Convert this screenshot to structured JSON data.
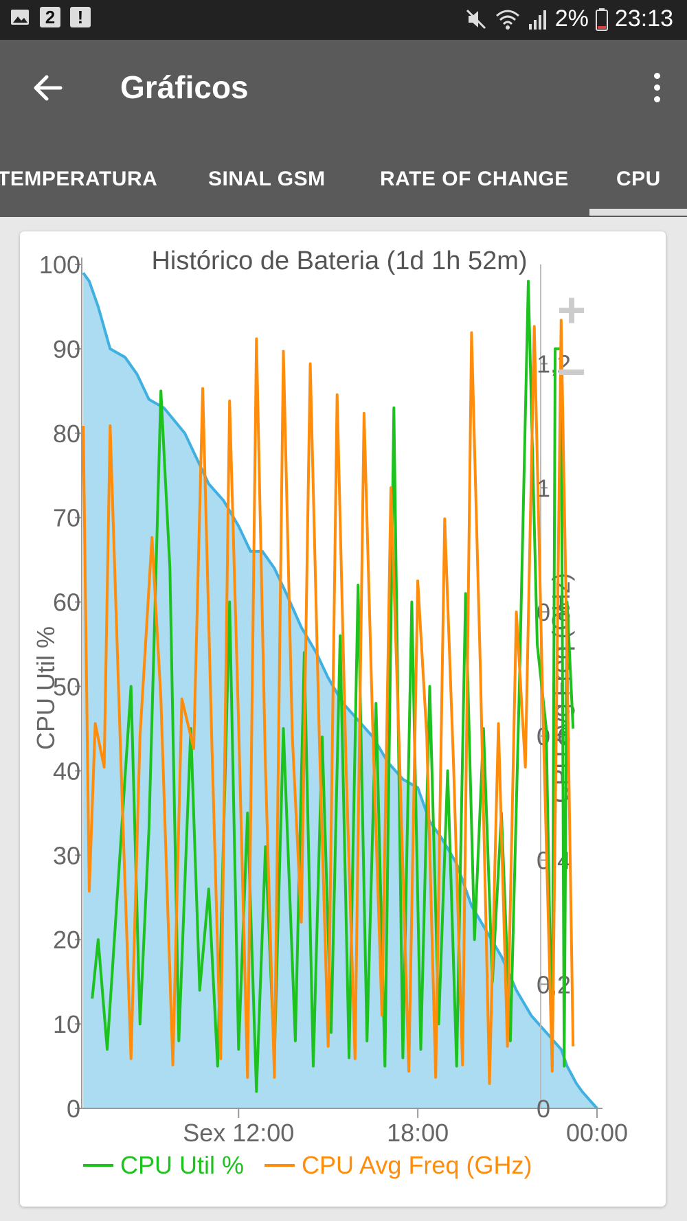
{
  "status_bar": {
    "notification_count": "2",
    "battery_percent": "2%",
    "time": "23:13",
    "icons": [
      "image-icon",
      "exclamation-icon",
      "mute-icon",
      "wifi-icon",
      "signal-icon",
      "battery-icon"
    ]
  },
  "appbar": {
    "title": "Gráficos",
    "back_icon": "arrow-back-icon",
    "menu_icon": "more-vert-icon"
  },
  "tabs": [
    {
      "label": "TEMPERATURA",
      "selected": false
    },
    {
      "label": "SINAL GSM",
      "selected": false
    },
    {
      "label": "RATE OF CHANGE",
      "selected": false
    },
    {
      "label": "CPU",
      "selected": true
    }
  ],
  "colors": {
    "appbar": "#5a5a5a",
    "cpu_util": "#1ec21e",
    "cpu_freq": "#ff8c0a",
    "battery_line": "#3fb0e0",
    "battery_fill": "#8fd0ee"
  },
  "zoom": {
    "plus": "+",
    "minus": "−"
  },
  "chart_data": {
    "type": "line",
    "title": "Histórico de Bateria (1d 1h 52m)",
    "ylabel": "CPU Util %",
    "y2label": "CPU Avg Freq (GHz)",
    "ylim": [
      0,
      100
    ],
    "y2lim": [
      0,
      1.36
    ],
    "yticks": [
      "0",
      "10",
      "20",
      "30",
      "40",
      "50",
      "60",
      "70",
      "80",
      "90",
      "100"
    ],
    "y2ticks": [
      "0",
      "0,2",
      "0,4",
      "0,6",
      "0,8",
      "1",
      "1,2"
    ],
    "xticks": [
      {
        "x": 12,
        "label": "Sex 12:00"
      },
      {
        "x": 18,
        "label": "18:00"
      },
      {
        "x": 24,
        "label": "00:00"
      }
    ],
    "xlim": [
      6.75,
      24
    ],
    "legend": [
      {
        "name": "CPU Util %",
        "color": "#1ec21e"
      },
      {
        "name": "CPU Avg Freq (GHz)",
        "color": "#ff8c0a"
      }
    ],
    "legend_position": "bottom",
    "series": [
      {
        "name": "battery",
        "axis": "left",
        "points": [
          [
            6.8,
            99
          ],
          [
            7.0,
            98
          ],
          [
            7.3,
            95
          ],
          [
            7.7,
            90
          ],
          [
            8.2,
            89
          ],
          [
            8.6,
            87
          ],
          [
            9.0,
            84
          ],
          [
            9.5,
            83
          ],
          [
            10.2,
            80
          ],
          [
            10.6,
            77
          ],
          [
            11.0,
            74
          ],
          [
            11.5,
            72
          ],
          [
            12.0,
            69
          ],
          [
            12.4,
            66
          ],
          [
            12.8,
            66
          ],
          [
            13.2,
            64
          ],
          [
            13.6,
            61
          ],
          [
            14.1,
            57
          ],
          [
            14.6,
            54
          ],
          [
            15.0,
            51
          ],
          [
            15.5,
            48
          ],
          [
            16.0,
            46
          ],
          [
            16.5,
            44
          ],
          [
            17.0,
            41
          ],
          [
            17.5,
            39
          ],
          [
            18.0,
            38
          ],
          [
            18.4,
            34
          ],
          [
            18.8,
            32
          ],
          [
            19.3,
            29
          ],
          [
            19.8,
            24
          ],
          [
            20.3,
            21
          ],
          [
            20.8,
            18
          ],
          [
            21.3,
            14
          ],
          [
            21.8,
            11
          ],
          [
            22.3,
            9
          ],
          [
            22.8,
            7
          ],
          [
            23.0,
            5
          ],
          [
            23.3,
            3
          ],
          [
            23.5,
            2
          ],
          [
            24.0,
            0
          ]
        ]
      },
      {
        "name": "CPU Util %",
        "axis": "left",
        "points": [
          [
            7.1,
            13
          ],
          [
            7.3,
            20
          ],
          [
            7.6,
            7
          ],
          [
            8.4,
            50
          ],
          [
            8.7,
            10
          ],
          [
            9.0,
            33
          ],
          [
            9.4,
            85
          ],
          [
            9.7,
            64
          ],
          [
            10.0,
            8
          ],
          [
            10.4,
            45
          ],
          [
            10.7,
            14
          ],
          [
            11.0,
            26
          ],
          [
            11.3,
            5
          ],
          [
            11.7,
            60
          ],
          [
            12.0,
            7
          ],
          [
            12.3,
            35
          ],
          [
            12.6,
            2
          ],
          [
            12.9,
            31
          ],
          [
            13.2,
            6
          ],
          [
            13.5,
            45
          ],
          [
            13.9,
            8
          ],
          [
            14.2,
            54
          ],
          [
            14.5,
            5
          ],
          [
            14.8,
            44
          ],
          [
            15.1,
            9
          ],
          [
            15.4,
            56
          ],
          [
            15.7,
            6
          ],
          [
            16.0,
            62
          ],
          [
            16.3,
            8
          ],
          [
            16.6,
            48
          ],
          [
            16.9,
            5
          ],
          [
            17.2,
            83
          ],
          [
            17.5,
            6
          ],
          [
            17.8,
            60
          ],
          [
            18.1,
            7
          ],
          [
            18.4,
            50
          ],
          [
            18.7,
            10
          ],
          [
            19.0,
            40
          ],
          [
            19.3,
            5
          ],
          [
            19.6,
            61
          ],
          [
            19.9,
            20
          ],
          [
            20.2,
            45
          ],
          [
            20.5,
            15
          ],
          [
            20.8,
            35
          ],
          [
            21.1,
            8
          ],
          [
            21.4,
            50
          ],
          [
            21.7,
            98
          ],
          [
            22.0,
            55
          ],
          [
            22.3,
            45
          ],
          [
            22.5,
            5
          ],
          [
            22.6,
            90
          ],
          [
            22.8,
            90
          ],
          [
            22.9,
            5
          ],
          [
            23.0,
            60
          ],
          [
            23.2,
            45
          ]
        ]
      },
      {
        "name": "CPU Avg Freq (GHz)",
        "axis": "right",
        "points": [
          [
            6.8,
            1.1
          ],
          [
            7.0,
            0.35
          ],
          [
            7.2,
            0.62
          ],
          [
            7.5,
            0.55
          ],
          [
            7.7,
            1.1
          ],
          [
            8.1,
            0.5
          ],
          [
            8.4,
            0.08
          ],
          [
            8.7,
            0.6
          ],
          [
            9.1,
            0.92
          ],
          [
            9.4,
            0.66
          ],
          [
            9.8,
            0.07
          ],
          [
            10.1,
            0.66
          ],
          [
            10.5,
            0.58
          ],
          [
            10.8,
            1.16
          ],
          [
            11.1,
            0.6
          ],
          [
            11.4,
            0.08
          ],
          [
            11.7,
            1.14
          ],
          [
            12.0,
            0.62
          ],
          [
            12.3,
            0.05
          ],
          [
            12.6,
            1.24
          ],
          [
            12.9,
            0.55
          ],
          [
            13.2,
            0.05
          ],
          [
            13.5,
            1.22
          ],
          [
            13.8,
            0.6
          ],
          [
            14.1,
            0.3
          ],
          [
            14.4,
            1.2
          ],
          [
            14.7,
            0.6
          ],
          [
            15.0,
            0.1
          ],
          [
            15.3,
            1.15
          ],
          [
            15.6,
            0.55
          ],
          [
            15.9,
            0.08
          ],
          [
            16.2,
            1.12
          ],
          [
            16.5,
            0.6
          ],
          [
            16.8,
            0.15
          ],
          [
            17.1,
            1.0
          ],
          [
            17.4,
            0.55
          ],
          [
            17.7,
            0.06
          ],
          [
            18.0,
            0.85
          ],
          [
            18.3,
            0.6
          ],
          [
            18.6,
            0.05
          ],
          [
            18.9,
            0.95
          ],
          [
            19.2,
            0.55
          ],
          [
            19.5,
            0.07
          ],
          [
            19.8,
            1.25
          ],
          [
            20.1,
            0.7
          ],
          [
            20.4,
            0.04
          ],
          [
            20.7,
            0.62
          ],
          [
            21.0,
            0.1
          ],
          [
            21.3,
            0.8
          ],
          [
            21.6,
            0.55
          ],
          [
            21.9,
            1.26
          ],
          [
            22.2,
            0.62
          ],
          [
            22.5,
            0.06
          ],
          [
            22.8,
            1.27
          ],
          [
            23.0,
            0.72
          ],
          [
            23.2,
            0.1
          ]
        ]
      }
    ]
  }
}
